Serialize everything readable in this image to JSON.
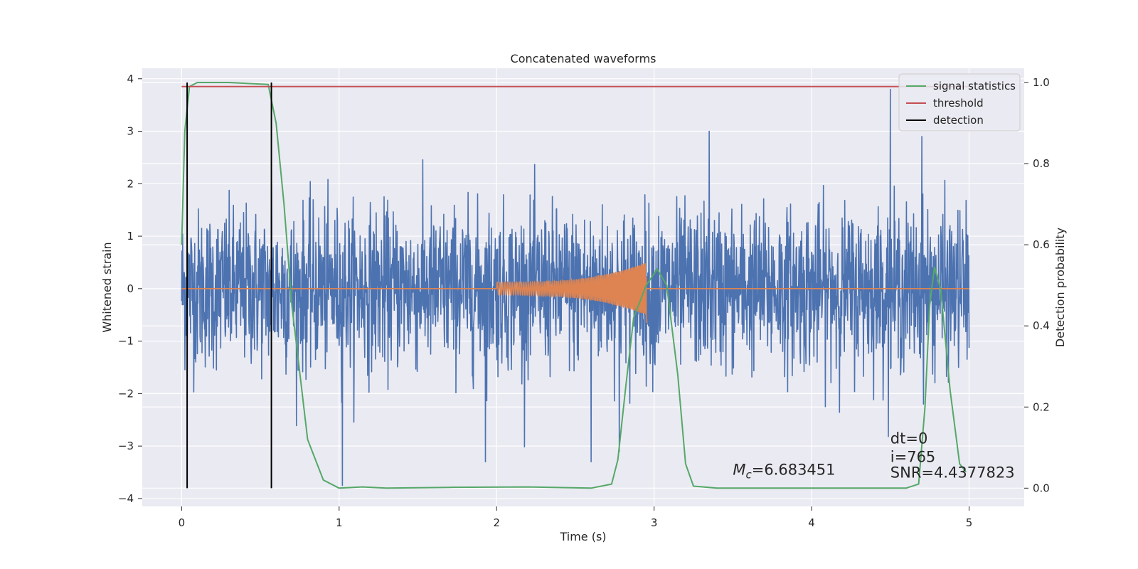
{
  "chart_data": {
    "type": "line",
    "title": "Concatenated waveforms",
    "xlabel": "Time (s)",
    "ylabel": "Whitened strain",
    "y2label": "Detection probability",
    "xlim": [
      -0.25,
      5.35
    ],
    "ylim": [
      -4.15,
      4.2
    ],
    "y2lim": [
      -0.045,
      1.035
    ],
    "xticks": [
      0,
      1,
      2,
      3,
      4,
      5
    ],
    "yticks": [
      -4,
      -3,
      -2,
      -1,
      0,
      1,
      2,
      3,
      4
    ],
    "y2ticks": [
      0.0,
      0.2,
      0.4,
      0.6,
      0.8,
      1.0
    ],
    "y2tick_labels": [
      "0.0",
      "0.2",
      "0.4",
      "0.6",
      "0.8",
      "1.0"
    ],
    "grid": true,
    "legend_position": "top-right",
    "series": [
      {
        "name": "",
        "role": "whitened strain noise",
        "axis": "left",
        "color": "#4c72b0",
        "x_range": [
          0,
          5
        ],
        "typical_amplitude": 0.75,
        "extremes": [
          {
            "x": 0.57,
            "y": 2.0
          },
          {
            "x": 1.02,
            "y": -3.75
          },
          {
            "x": 1.93,
            "y": -3.3
          },
          {
            "x": 2.6,
            "y": -3.3
          },
          {
            "x": 2.78,
            "y": -3.1
          },
          {
            "x": 3.35,
            "y": 3.0
          },
          {
            "x": 4.5,
            "y": 3.8
          },
          {
            "x": 4.7,
            "y": 2.9
          }
        ]
      },
      {
        "name": "",
        "role": "injected waveform",
        "axis": "left",
        "color": "#dd8452",
        "x_start": 2.0,
        "x_end": 2.95,
        "amplitude_start": 0.12,
        "amplitude_end": 0.5
      },
      {
        "name": "signal statistics",
        "axis": "right",
        "color": "#55a868",
        "x": [
          0,
          0.02,
          0.05,
          0.1,
          0.3,
          0.55,
          0.6,
          0.65,
          0.7,
          0.8,
          0.9,
          1.0,
          1.15,
          1.3,
          1.7,
          2.2,
          2.6,
          2.73,
          2.77,
          2.82,
          2.87,
          2.95,
          3.02,
          3.08,
          3.15,
          3.2,
          3.25,
          3.4,
          4.0,
          4.6,
          4.68,
          4.72,
          4.75,
          4.78,
          4.82,
          4.88,
          4.94,
          4.98
        ],
        "values": [
          0.6,
          0.88,
          0.99,
          1.0,
          1.0,
          0.995,
          0.9,
          0.7,
          0.45,
          0.12,
          0.02,
          0.0,
          0.003,
          0.0,
          0.002,
          0.003,
          0.0,
          0.01,
          0.07,
          0.25,
          0.42,
          0.5,
          0.54,
          0.5,
          0.28,
          0.06,
          0.005,
          0.0,
          0.0,
          0.0,
          0.01,
          0.2,
          0.45,
          0.545,
          0.49,
          0.24,
          0.06,
          0.04
        ]
      },
      {
        "name": "threshold",
        "axis": "right",
        "color": "#c44e52",
        "x": [
          0,
          5
        ],
        "values": [
          0.99,
          0.99
        ]
      },
      {
        "name": "detection",
        "axis": "right",
        "color": "#000000",
        "vlines": [
          0.035,
          0.57
        ],
        "range": [
          0.0,
          1.0
        ]
      }
    ],
    "annotations": [
      {
        "text": "$M_c$=6.683451",
        "x": 3.5,
        "y": -3.55
      },
      {
        "text": "dt=0",
        "x": 4.5,
        "y": -2.95
      },
      {
        "text": "i=765",
        "x": 4.5,
        "y": -3.3
      },
      {
        "text": "SNR=4.4377823",
        "x": 4.5,
        "y": -3.6
      }
    ]
  }
}
